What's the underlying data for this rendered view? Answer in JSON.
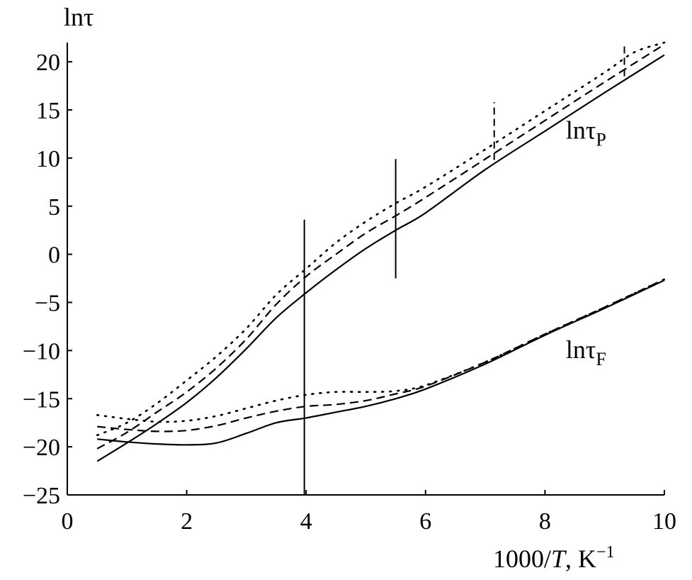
{
  "chart_data": {
    "type": "line",
    "title": "",
    "ylabel": "lnτ",
    "xlabel": {
      "prefix": "1000/",
      "var": "T",
      "unit": ", K",
      "exp": "−1"
    },
    "xlim": [
      0,
      10
    ],
    "ylim": [
      -25,
      22
    ],
    "x_ticks": [
      0,
      2,
      4,
      6,
      8,
      10
    ],
    "x_tick_labels": [
      "0",
      "2",
      "4",
      "6",
      "8",
      "10"
    ],
    "y_ticks": [
      20,
      15,
      10,
      5,
      0,
      -5,
      -10,
      -15,
      -20,
      -25
    ],
    "y_tick_labels": [
      "20",
      "15",
      "10",
      "5",
      "0",
      "−5",
      "−10",
      "−15",
      "−20",
      "−25"
    ],
    "grid": false,
    "annotations": [
      {
        "text": "lnτ",
        "sub": "P",
        "x": 8.35,
        "y": 12.0
      },
      {
        "text": "lnτ",
        "sub": "F",
        "x": 8.35,
        "y": -10.8
      }
    ],
    "vertical_markers": [
      {
        "x": 3.97,
        "y_from": -25.0,
        "y_to": 3.6,
        "style": "solid"
      },
      {
        "x": 5.5,
        "y_from": -2.5,
        "y_to": 9.9,
        "style": "solid"
      },
      {
        "x": 7.15,
        "y_from": 9.8,
        "y_to": 15.8,
        "style": "dashed"
      },
      {
        "x": 9.33,
        "y_from": 18.5,
        "y_to": 22.0,
        "style": "dashed"
      }
    ],
    "series": [
      {
        "group": "P",
        "style": "solid",
        "x": [
          0.5,
          1.0,
          1.5,
          2.0,
          2.5,
          3.0,
          3.5,
          4.0,
          4.5,
          5.0,
          5.5,
          6.0,
          7.0,
          8.0,
          9.0,
          10.0
        ],
        "y": [
          -21.5,
          -19.6,
          -17.6,
          -15.4,
          -12.8,
          -9.8,
          -6.6,
          -4.0,
          -1.6,
          0.6,
          2.5,
          4.3,
          8.8,
          12.8,
          16.8,
          20.7
        ]
      },
      {
        "group": "P",
        "style": "dashed",
        "x": [
          0.5,
          1.0,
          1.5,
          2.0,
          2.5,
          3.0,
          3.5,
          4.0,
          4.5,
          5.0,
          5.5,
          6.0,
          7.0,
          8.0,
          9.0,
          10.0
        ],
        "y": [
          -20.2,
          -18.5,
          -16.4,
          -14.3,
          -11.8,
          -8.8,
          -5.2,
          -2.3,
          0.0,
          2.2,
          4.0,
          5.9,
          9.9,
          13.9,
          17.9,
          21.8
        ]
      },
      {
        "group": "P",
        "style": "dotted",
        "x": [
          0.5,
          1.0,
          1.5,
          2.0,
          2.5,
          3.0,
          3.5,
          4.0,
          4.5,
          5.0,
          5.5,
          6.0,
          7.0,
          8.0,
          9.0,
          9.5,
          10.0
        ],
        "y": [
          -18.8,
          -17.5,
          -15.5,
          -13.1,
          -10.6,
          -7.7,
          -4.2,
          -1.5,
          1.2,
          3.4,
          5.3,
          7.0,
          10.9,
          14.9,
          18.9,
          21.0,
          22.0
        ]
      },
      {
        "group": "F",
        "style": "solid",
        "x": [
          0.5,
          1.0,
          1.5,
          2.0,
          2.5,
          3.0,
          3.5,
          4.0,
          4.5,
          5.0,
          5.5,
          6.0,
          7.0,
          8.0,
          9.0,
          10.0
        ],
        "y": [
          -19.2,
          -19.5,
          -19.7,
          -19.8,
          -19.6,
          -18.6,
          -17.5,
          -17.0,
          -16.4,
          -15.8,
          -15.0,
          -14.0,
          -11.4,
          -8.4,
          -5.6,
          -2.7
        ]
      },
      {
        "group": "F",
        "style": "dashed",
        "x": [
          0.5,
          1.0,
          1.5,
          2.0,
          2.5,
          3.0,
          3.5,
          4.0,
          4.5,
          5.0,
          5.5,
          6.0,
          7.0,
          8.0,
          9.0,
          10.0
        ],
        "y": [
          -17.9,
          -18.2,
          -18.4,
          -18.3,
          -17.8,
          -17.0,
          -16.3,
          -15.8,
          -15.6,
          -15.2,
          -14.5,
          -13.7,
          -11.2,
          -8.3,
          -5.5,
          -2.6
        ]
      },
      {
        "group": "F",
        "style": "dotted",
        "x": [
          0.5,
          1.0,
          1.5,
          2.0,
          2.5,
          3.0,
          3.5,
          4.0,
          4.5,
          5.0,
          5.5,
          6.0,
          7.0,
          8.0,
          9.0,
          10.0
        ],
        "y": [
          -16.7,
          -17.1,
          -17.4,
          -17.3,
          -16.8,
          -16.0,
          -15.2,
          -14.6,
          -14.3,
          -14.3,
          -14.2,
          -13.6,
          -11.2,
          -8.3,
          -5.5,
          -2.6
        ]
      }
    ]
  }
}
